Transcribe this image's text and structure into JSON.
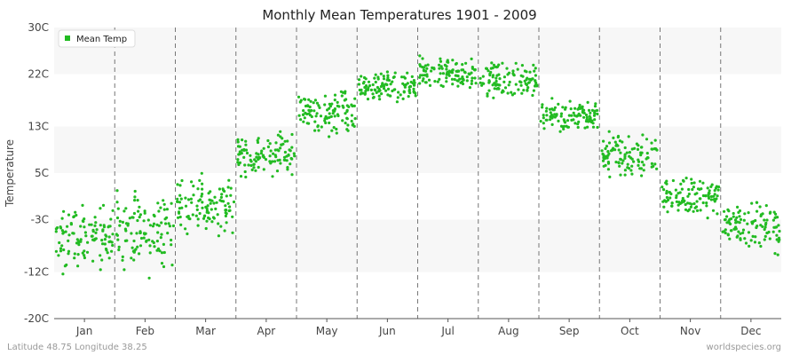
{
  "chart_data": {
    "type": "scatter",
    "title": "Monthly Mean Temperatures 1901 - 2009",
    "ylabel": "Temperature",
    "xlabel": "",
    "categories": [
      "Jan",
      "Feb",
      "Mar",
      "Apr",
      "May",
      "Jun",
      "Jul",
      "Aug",
      "Sep",
      "Oct",
      "Nov",
      "Dec"
    ],
    "y_ticks": [
      {
        "value": 30,
        "label": "30C"
      },
      {
        "value": 22,
        "label": "22C"
      },
      {
        "value": 13,
        "label": "13C"
      },
      {
        "value": 5,
        "label": "5C"
      },
      {
        "value": -3,
        "label": "-3C"
      },
      {
        "value": -12,
        "label": "-12C"
      },
      {
        "value": -20,
        "label": "-20C"
      }
    ],
    "ylim": [
      -20,
      30
    ],
    "legend": {
      "position": "top-left",
      "entries": [
        "Mean Temp"
      ]
    },
    "series": [
      {
        "name": "Mean Temp",
        "color": "#22bb22",
        "years": "1901-2009",
        "monthly_summary": [
          {
            "month": "Jan",
            "mean": -6.0,
            "min": -15.5,
            "max": 1.0
          },
          {
            "month": "Feb",
            "mean": -5.0,
            "min": -16.0,
            "max": 2.0
          },
          {
            "month": "Mar",
            "mean": -0.5,
            "min": -7.0,
            "max": 5.5
          },
          {
            "month": "Apr",
            "mean": 8.0,
            "min": 3.5,
            "max": 14.0
          },
          {
            "month": "May",
            "mean": 15.5,
            "min": 10.0,
            "max": 20.5
          },
          {
            "month": "Jun",
            "mean": 19.5,
            "min": 16.5,
            "max": 24.0
          },
          {
            "month": "Jul",
            "mean": 22.0,
            "min": 18.5,
            "max": 26.0
          },
          {
            "month": "Aug",
            "mean": 21.0,
            "min": 17.0,
            "max": 25.5
          },
          {
            "month": "Sep",
            "mean": 15.0,
            "min": 11.5,
            "max": 18.5
          },
          {
            "month": "Oct",
            "mean": 8.0,
            "min": 2.5,
            "max": 12.5
          },
          {
            "month": "Nov",
            "mean": 1.0,
            "min": -5.5,
            "max": 5.0
          },
          {
            "month": "Dec",
            "mean": -4.0,
            "min": -10.5,
            "max": 1.5
          }
        ]
      }
    ],
    "grid": "alternating horizontal bands, dashed vertical month dividers"
  },
  "footer": {
    "left": "Latitude 48.75 Longitude 38.25",
    "right": "worldspecies.org"
  },
  "colors": {
    "point": "#22bb22",
    "band_light": "#f7f7f7",
    "band_white": "#ffffff",
    "divider": "#777777"
  }
}
